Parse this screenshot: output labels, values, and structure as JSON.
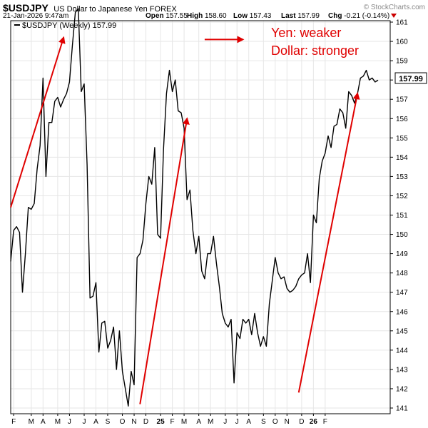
{
  "header": {
    "symbol": "$USDJPY",
    "description": "US Dollar to Japanese Yen FOREX",
    "brand": "© StockCharts.com",
    "date": "21-Jan-2026 9:47am",
    "open_label": "Open",
    "open": "157.55",
    "high_label": "High",
    "high": "158.60",
    "low_label": "Low",
    "low": "157.43",
    "last_label": "Last",
    "last": "157.99",
    "chg_label": "Chg",
    "chg": "-0.21 (-0.14%)"
  },
  "legend": {
    "label": "$USDJPY (Weekly) 157.99"
  },
  "last_price_tag": "157.99",
  "annotations": {
    "line1": "Yen: weaker",
    "line2": "Dollar: stronger"
  },
  "colors": {
    "price_line": "#000000",
    "annotation": "#e00000",
    "grid": "#e6e6e6"
  },
  "chart_data": {
    "type": "line",
    "title": "$USDJPY (Weekly) 157.99",
    "series": [
      {
        "name": "$USDJPY",
        "x": [
          0,
          1,
          2,
          3,
          4,
          5,
          6,
          7,
          8,
          9,
          10,
          11,
          12,
          13,
          14,
          15,
          16,
          17,
          18,
          19,
          20,
          21,
          22,
          23,
          24,
          25,
          26,
          27,
          28,
          29,
          30,
          31,
          32,
          33,
          34,
          35,
          36,
          37,
          38,
          39,
          40,
          41,
          42,
          43,
          44,
          45,
          46,
          47,
          48,
          49,
          50,
          51,
          52,
          53,
          54,
          55,
          56,
          57,
          58,
          59,
          60,
          61,
          62,
          63,
          64,
          65,
          66,
          67,
          68,
          69,
          70,
          71,
          72,
          73,
          74,
          75,
          76,
          77,
          78,
          79,
          80,
          81,
          82,
          83,
          84,
          85,
          86,
          87,
          88,
          89,
          90,
          91,
          92,
          93,
          94,
          95,
          96,
          97,
          98,
          99,
          100,
          101,
          102,
          103,
          104,
          105,
          106,
          107,
          108,
          109,
          110,
          111,
          112,
          113,
          114,
          115,
          116,
          117,
          118,
          119,
          120,
          121,
          122,
          123,
          124,
          125
        ],
        "values": [
          148.6,
          150.2,
          150.4,
          150.1,
          147.0,
          149.0,
          151.4,
          151.3,
          151.6,
          153.4,
          154.6,
          158.1,
          153.0,
          155.8,
          155.8,
          156.9,
          157.1,
          156.6,
          157.0,
          157.3,
          157.9,
          159.8,
          161.5,
          161.7,
          157.4,
          157.8,
          153.6,
          146.7,
          146.8,
          147.5,
          143.9,
          145.4,
          145.5,
          144.1,
          144.5,
          145.2,
          143.0,
          145.0,
          142.9,
          142.0,
          141.1,
          142.9,
          142.2,
          148.8,
          149.0,
          149.7,
          151.6,
          153.0,
          152.6,
          154.5,
          150.0,
          149.8,
          154.4,
          157.3,
          158.5,
          157.4,
          158.0,
          156.4,
          156.3,
          155.5,
          151.8,
          152.3,
          150.2,
          149.0,
          149.9,
          148.1,
          147.7,
          149.0,
          149.0,
          149.9,
          148.5,
          147.3,
          145.9,
          145.4,
          145.2,
          145.6,
          142.3,
          144.9,
          144.6,
          145.6,
          145.4,
          145.6,
          144.8,
          145.9,
          144.9,
          144.2,
          144.7,
          144.2,
          146.4,
          147.6,
          148.8,
          148.0,
          147.7,
          147.8,
          147.2,
          147.0,
          147.1,
          147.3,
          147.7,
          147.9,
          148.0,
          149.0,
          147.5,
          151.0,
          150.6,
          152.9,
          153.8,
          154.2,
          155.1,
          154.5,
          155.6,
          155.7,
          156.5,
          156.3,
          155.5,
          157.4,
          157.2,
          156.8,
          157.3,
          158.1,
          158.2,
          158.5,
          158.0,
          158.1,
          157.9,
          157.99
        ]
      }
    ],
    "ylim": [
      140.8,
      161.3
    ],
    "y_ticks": [
      141,
      142,
      143,
      144,
      145,
      146,
      147,
      148,
      149,
      150,
      151,
      152,
      153,
      154,
      155,
      156,
      157,
      158,
      159,
      160,
      161
    ],
    "x_tick_labels": [
      "F",
      "M",
      "A",
      "M",
      "J",
      "J",
      "A",
      "S",
      "O",
      "N",
      "D",
      "25",
      "F",
      "M",
      "A",
      "M",
      "J",
      "J",
      "A",
      "S",
      "O",
      "N",
      "D",
      "26",
      "F"
    ],
    "x_tick_positions": [
      1,
      7,
      11,
      16,
      20,
      25,
      29,
      33,
      38,
      42,
      46,
      51,
      55,
      59,
      64,
      68,
      73,
      77,
      81,
      86,
      90,
      94,
      99,
      103,
      107
    ],
    "grid": true,
    "legend_position": "top-left",
    "arrows": [
      {
        "from": [
          0,
          151.4
        ],
        "to": [
          18,
          160.2
        ]
      },
      {
        "from": [
          44,
          141.2
        ],
        "to": [
          60,
          156.0
        ]
      },
      {
        "from": [
          98,
          141.8
        ],
        "to": [
          118,
          157.3
        ]
      },
      {
        "from": [
          66,
          160.1
        ],
        "to": [
          79,
          160.1
        ]
      }
    ]
  }
}
